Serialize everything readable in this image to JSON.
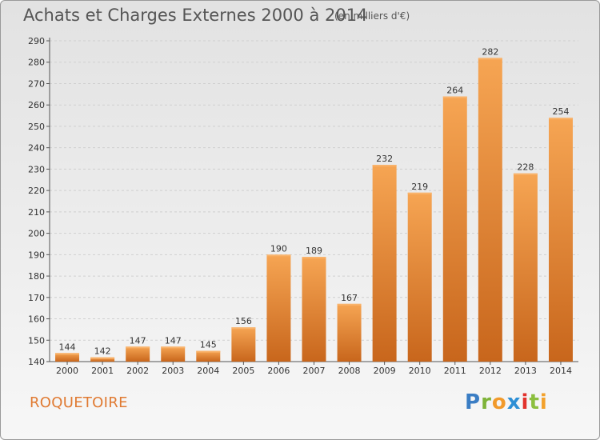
{
  "title": "Achats et Charges Externes 2000 à 2014",
  "subtitle": "(en milliers d'€)",
  "commune": "ROQUETOIRE",
  "logo": {
    "letters": [
      "P",
      "r",
      "o",
      "x",
      "i",
      "t",
      "i"
    ],
    "colors": [
      "#3a7dc4",
      "#7fb339",
      "#f19a2b",
      "#2d8fd5",
      "#e2322c",
      "#8cbf3f",
      "#f3a12b"
    ]
  },
  "chart_data": {
    "type": "bar",
    "categories": [
      "2000",
      "2001",
      "2002",
      "2003",
      "2004",
      "2005",
      "2006",
      "2007",
      "2008",
      "2009",
      "2010",
      "2011",
      "2012",
      "2013",
      "2014"
    ],
    "values": [
      144,
      142,
      147,
      147,
      145,
      156,
      190,
      189,
      167,
      232,
      219,
      264,
      282,
      228,
      254
    ],
    "ylim": [
      140,
      290
    ],
    "yticks": [
      140,
      150,
      160,
      170,
      180,
      190,
      200,
      210,
      220,
      230,
      240,
      250,
      260,
      270,
      280,
      290
    ],
    "grid": true,
    "bar_color_light": "#f6a553",
    "bar_color_dark": "#c8661c"
  }
}
